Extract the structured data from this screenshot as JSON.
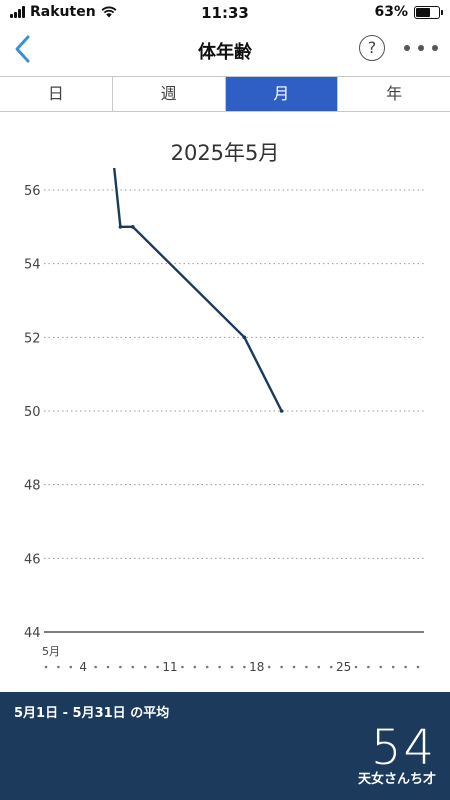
{
  "status_bar": {
    "carrier": "Rakuten",
    "time": "11:33",
    "battery_percent": "63%",
    "battery_level": 0.63
  },
  "nav": {
    "title": "体年齢",
    "help_label": "?"
  },
  "segments": [
    {
      "label": "日",
      "active": false
    },
    {
      "label": "週",
      "active": false
    },
    {
      "label": "月",
      "active": true
    },
    {
      "label": "年",
      "active": false
    }
  ],
  "chart_data": {
    "type": "line",
    "title": "2025年5月",
    "xlabel": "5月",
    "ylabel": "",
    "xlim": [
      1,
      31
    ],
    "ylim": [
      44,
      56.5
    ],
    "yticks": [
      44,
      46,
      48,
      50,
      52,
      54,
      56
    ],
    "xticks": [
      4,
      11,
      18,
      25
    ],
    "series": [
      {
        "points": [
          {
            "x": 6.5,
            "y": 56.6
          },
          {
            "x": 7,
            "y": 55
          },
          {
            "x": 8,
            "y": 55
          },
          {
            "x": 17,
            "y": 52
          },
          {
            "x": 20,
            "y": 50
          }
        ]
      }
    ],
    "colors": {
      "line": "#1b3a5c",
      "grid": "#999999",
      "axis": "#555555"
    }
  },
  "summary": {
    "label": "5月1日 - 5月31日 の平均",
    "value": "54",
    "unit": "天女さんち才"
  }
}
